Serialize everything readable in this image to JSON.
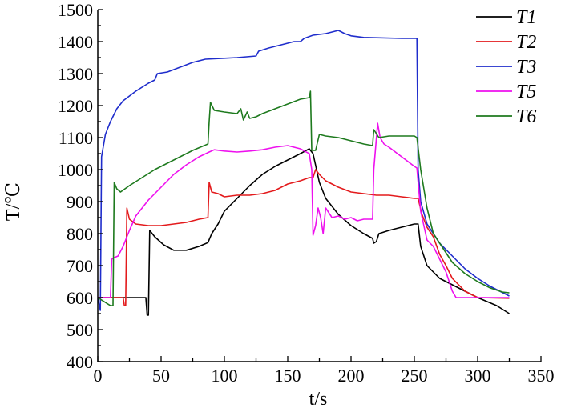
{
  "chart_data": {
    "type": "line",
    "xlabel": "t/s",
    "ylabel": "T/℃",
    "xlim": [
      0,
      350
    ],
    "ylim": [
      400,
      1500
    ],
    "xticks": [
      0,
      50,
      100,
      150,
      200,
      250,
      300,
      350
    ],
    "yticks": [
      400,
      500,
      600,
      700,
      800,
      900,
      1000,
      1100,
      1200,
      1300,
      1400,
      1500
    ],
    "grid": false,
    "legend_position": "top-right",
    "series": [
      {
        "name": "T1",
        "color": "#000000",
        "points": [
          [
            0,
            600
          ],
          [
            38,
            600
          ],
          [
            39,
            545
          ],
          [
            40,
            545
          ],
          [
            41,
            810
          ],
          [
            45,
            790
          ],
          [
            52,
            765
          ],
          [
            60,
            748
          ],
          [
            70,
            748
          ],
          [
            80,
            760
          ],
          [
            87,
            772
          ],
          [
            90,
            800
          ],
          [
            95,
            830
          ],
          [
            100,
            870
          ],
          [
            110,
            910
          ],
          [
            120,
            950
          ],
          [
            130,
            985
          ],
          [
            140,
            1010
          ],
          [
            150,
            1030
          ],
          [
            160,
            1050
          ],
          [
            167,
            1065
          ],
          [
            170,
            1050
          ],
          [
            175,
            960
          ],
          [
            180,
            910
          ],
          [
            190,
            860
          ],
          [
            200,
            825
          ],
          [
            210,
            800
          ],
          [
            217,
            785
          ],
          [
            218,
            770
          ],
          [
            220,
            775
          ],
          [
            222,
            800
          ],
          [
            230,
            810
          ],
          [
            240,
            820
          ],
          [
            250,
            830
          ],
          [
            253,
            830
          ],
          [
            255,
            760
          ],
          [
            260,
            700
          ],
          [
            270,
            660
          ],
          [
            280,
            640
          ],
          [
            300,
            600
          ],
          [
            315,
            575
          ],
          [
            325,
            550
          ]
        ]
      },
      {
        "name": "T2",
        "color": "#e31a1c",
        "points": [
          [
            0,
            600
          ],
          [
            20,
            600
          ],
          [
            21,
            575
          ],
          [
            22,
            575
          ],
          [
            23,
            880
          ],
          [
            25,
            845
          ],
          [
            30,
            830
          ],
          [
            40,
            825
          ],
          [
            50,
            825
          ],
          [
            60,
            830
          ],
          [
            70,
            835
          ],
          [
            80,
            845
          ],
          [
            87,
            850
          ],
          [
            88,
            960
          ],
          [
            90,
            930
          ],
          [
            95,
            925
          ],
          [
            100,
            915
          ],
          [
            110,
            920
          ],
          [
            120,
            920
          ],
          [
            130,
            925
          ],
          [
            140,
            935
          ],
          [
            150,
            955
          ],
          [
            160,
            965
          ],
          [
            167,
            975
          ],
          [
            170,
            975
          ],
          [
            172,
            1000
          ],
          [
            175,
            985
          ],
          [
            180,
            965
          ],
          [
            190,
            945
          ],
          [
            200,
            930
          ],
          [
            210,
            925
          ],
          [
            220,
            920
          ],
          [
            230,
            920
          ],
          [
            240,
            915
          ],
          [
            250,
            910
          ],
          [
            253,
            910
          ],
          [
            256,
            860
          ],
          [
            260,
            820
          ],
          [
            265,
            790
          ],
          [
            270,
            735
          ],
          [
            275,
            700
          ],
          [
            280,
            660
          ],
          [
            285,
            640
          ],
          [
            290,
            620
          ],
          [
            300,
            600
          ],
          [
            325,
            598
          ]
        ]
      },
      {
        "name": "T3",
        "color": "#1f2dcc",
        "points": [
          [
            0,
            600
          ],
          [
            2,
            560
          ],
          [
            3,
            1040
          ],
          [
            6,
            1110
          ],
          [
            10,
            1150
          ],
          [
            15,
            1190
          ],
          [
            20,
            1215
          ],
          [
            30,
            1245
          ],
          [
            40,
            1270
          ],
          [
            45,
            1280
          ],
          [
            47,
            1300
          ],
          [
            55,
            1305
          ],
          [
            65,
            1320
          ],
          [
            75,
            1335
          ],
          [
            85,
            1345
          ],
          [
            100,
            1348
          ],
          [
            110,
            1350
          ],
          [
            125,
            1355
          ],
          [
            127,
            1370
          ],
          [
            135,
            1380
          ],
          [
            145,
            1390
          ],
          [
            155,
            1400
          ],
          [
            160,
            1400
          ],
          [
            163,
            1410
          ],
          [
            170,
            1420
          ],
          [
            180,
            1425
          ],
          [
            190,
            1435
          ],
          [
            195,
            1425
          ],
          [
            200,
            1418
          ],
          [
            210,
            1413
          ],
          [
            220,
            1412
          ],
          [
            240,
            1410
          ],
          [
            252,
            1410
          ],
          [
            253,
            1000
          ],
          [
            255,
            900
          ],
          [
            260,
            830
          ],
          [
            265,
            800
          ],
          [
            270,
            770
          ],
          [
            275,
            750
          ],
          [
            280,
            730
          ],
          [
            290,
            690
          ],
          [
            300,
            660
          ],
          [
            310,
            635
          ],
          [
            320,
            615
          ],
          [
            325,
            605
          ]
        ]
      },
      {
        "name": "T5",
        "color": "#ee11ee",
        "points": [
          [
            0,
            600
          ],
          [
            10,
            600
          ],
          [
            11,
            720
          ],
          [
            13,
            725
          ],
          [
            16,
            730
          ],
          [
            20,
            760
          ],
          [
            25,
            810
          ],
          [
            30,
            855
          ],
          [
            40,
            905
          ],
          [
            50,
            945
          ],
          [
            60,
            985
          ],
          [
            70,
            1015
          ],
          [
            80,
            1040
          ],
          [
            88,
            1055
          ],
          [
            92,
            1062
          ],
          [
            100,
            1058
          ],
          [
            110,
            1055
          ],
          [
            120,
            1058
          ],
          [
            130,
            1062
          ],
          [
            140,
            1070
          ],
          [
            150,
            1075
          ],
          [
            160,
            1065
          ],
          [
            167,
            1050
          ],
          [
            169,
            1000
          ],
          [
            170,
            795
          ],
          [
            172,
            825
          ],
          [
            174,
            880
          ],
          [
            176,
            850
          ],
          [
            178,
            800
          ],
          [
            180,
            880
          ],
          [
            185,
            850
          ],
          [
            190,
            855
          ],
          [
            195,
            845
          ],
          [
            200,
            850
          ],
          [
            205,
            840
          ],
          [
            210,
            845
          ],
          [
            217,
            845
          ],
          [
            218,
            1000
          ],
          [
            221,
            1145
          ],
          [
            223,
            1100
          ],
          [
            226,
            1080
          ],
          [
            230,
            1070
          ],
          [
            240,
            1040
          ],
          [
            250,
            1010
          ],
          [
            252,
            1005
          ],
          [
            255,
            870
          ],
          [
            260,
            780
          ],
          [
            265,
            760
          ],
          [
            270,
            720
          ],
          [
            275,
            680
          ],
          [
            280,
            620
          ],
          [
            283,
            600
          ],
          [
            325,
            600
          ]
        ]
      },
      {
        "name": "T6",
        "color": "#1e7a1e",
        "points": [
          [
            0,
            600
          ],
          [
            10,
            575
          ],
          [
            12,
            575
          ],
          [
            13,
            960
          ],
          [
            15,
            940
          ],
          [
            18,
            930
          ],
          [
            25,
            950
          ],
          [
            35,
            975
          ],
          [
            45,
            1000
          ],
          [
            55,
            1020
          ],
          [
            65,
            1040
          ],
          [
            75,
            1060
          ],
          [
            87,
            1080
          ],
          [
            88,
            1150
          ],
          [
            89,
            1210
          ],
          [
            92,
            1185
          ],
          [
            100,
            1180
          ],
          [
            110,
            1175
          ],
          [
            113,
            1190
          ],
          [
            115,
            1155
          ],
          [
            118,
            1180
          ],
          [
            120,
            1160
          ],
          [
            125,
            1165
          ],
          [
            130,
            1175
          ],
          [
            140,
            1190
          ],
          [
            150,
            1205
          ],
          [
            160,
            1220
          ],
          [
            167,
            1225
          ],
          [
            168,
            1245
          ],
          [
            169,
            1060
          ],
          [
            172,
            1060
          ],
          [
            175,
            1110
          ],
          [
            180,
            1105
          ],
          [
            190,
            1100
          ],
          [
            200,
            1090
          ],
          [
            210,
            1080
          ],
          [
            217,
            1075
          ],
          [
            218,
            1125
          ],
          [
            222,
            1100
          ],
          [
            230,
            1105
          ],
          [
            240,
            1105
          ],
          [
            250,
            1105
          ],
          [
            252,
            1100
          ],
          [
            255,
            1000
          ],
          [
            260,
            880
          ],
          [
            265,
            800
          ],
          [
            270,
            770
          ],
          [
            275,
            740
          ],
          [
            280,
            710
          ],
          [
            290,
            675
          ],
          [
            300,
            650
          ],
          [
            310,
            630
          ],
          [
            320,
            617
          ],
          [
            325,
            615
          ]
        ]
      }
    ]
  }
}
